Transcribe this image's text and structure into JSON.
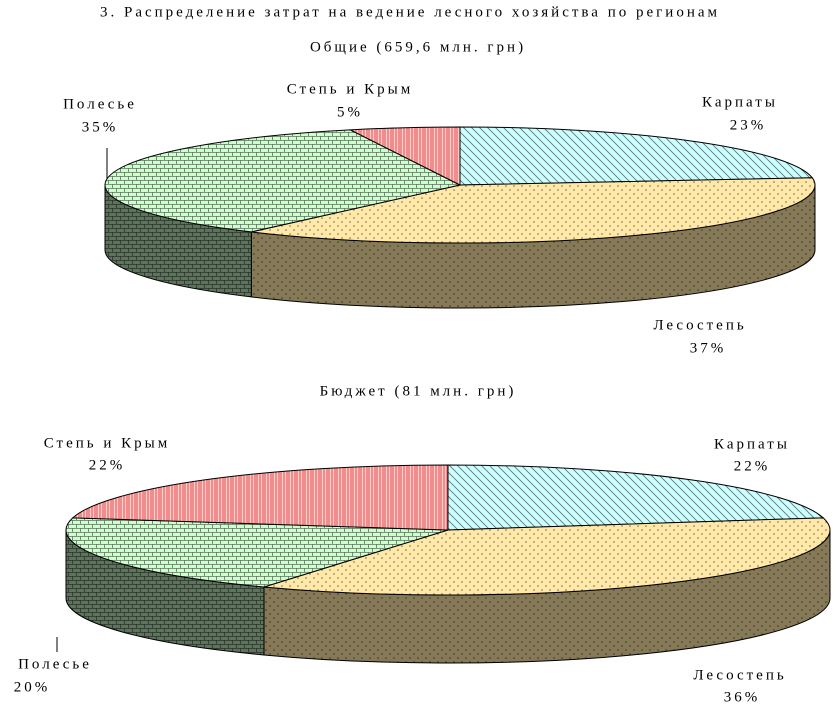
{
  "title": "3. Распределение затрат на ведение лесного хозяйства по регионам",
  "chart_data": [
    {
      "type": "pie",
      "title": "Общие (659,6 млн. грн)",
      "categories": [
        "Карпаты",
        "Лесостепь",
        "Полесье",
        "Степь и Крым"
      ],
      "values": [
        23,
        37,
        35,
        5
      ],
      "value_labels": [
        "23%",
        "37%",
        "35%",
        "5%"
      ],
      "colors": [
        "#ccffff",
        "#ffe8a8",
        "#ccffcc",
        "#ffcccc"
      ]
    },
    {
      "type": "pie",
      "title": "Бюджет (81 млн. грн)",
      "categories": [
        "Карпаты",
        "Лесостепь",
        "Полесье",
        "Степь и Крым"
      ],
      "values": [
        22,
        36,
        20,
        22
      ],
      "value_labels": [
        "22%",
        "36%",
        "20%",
        "22%"
      ],
      "colors": [
        "#ccffff",
        "#ffe8a8",
        "#ccffcc",
        "#ffcccc"
      ]
    }
  ]
}
